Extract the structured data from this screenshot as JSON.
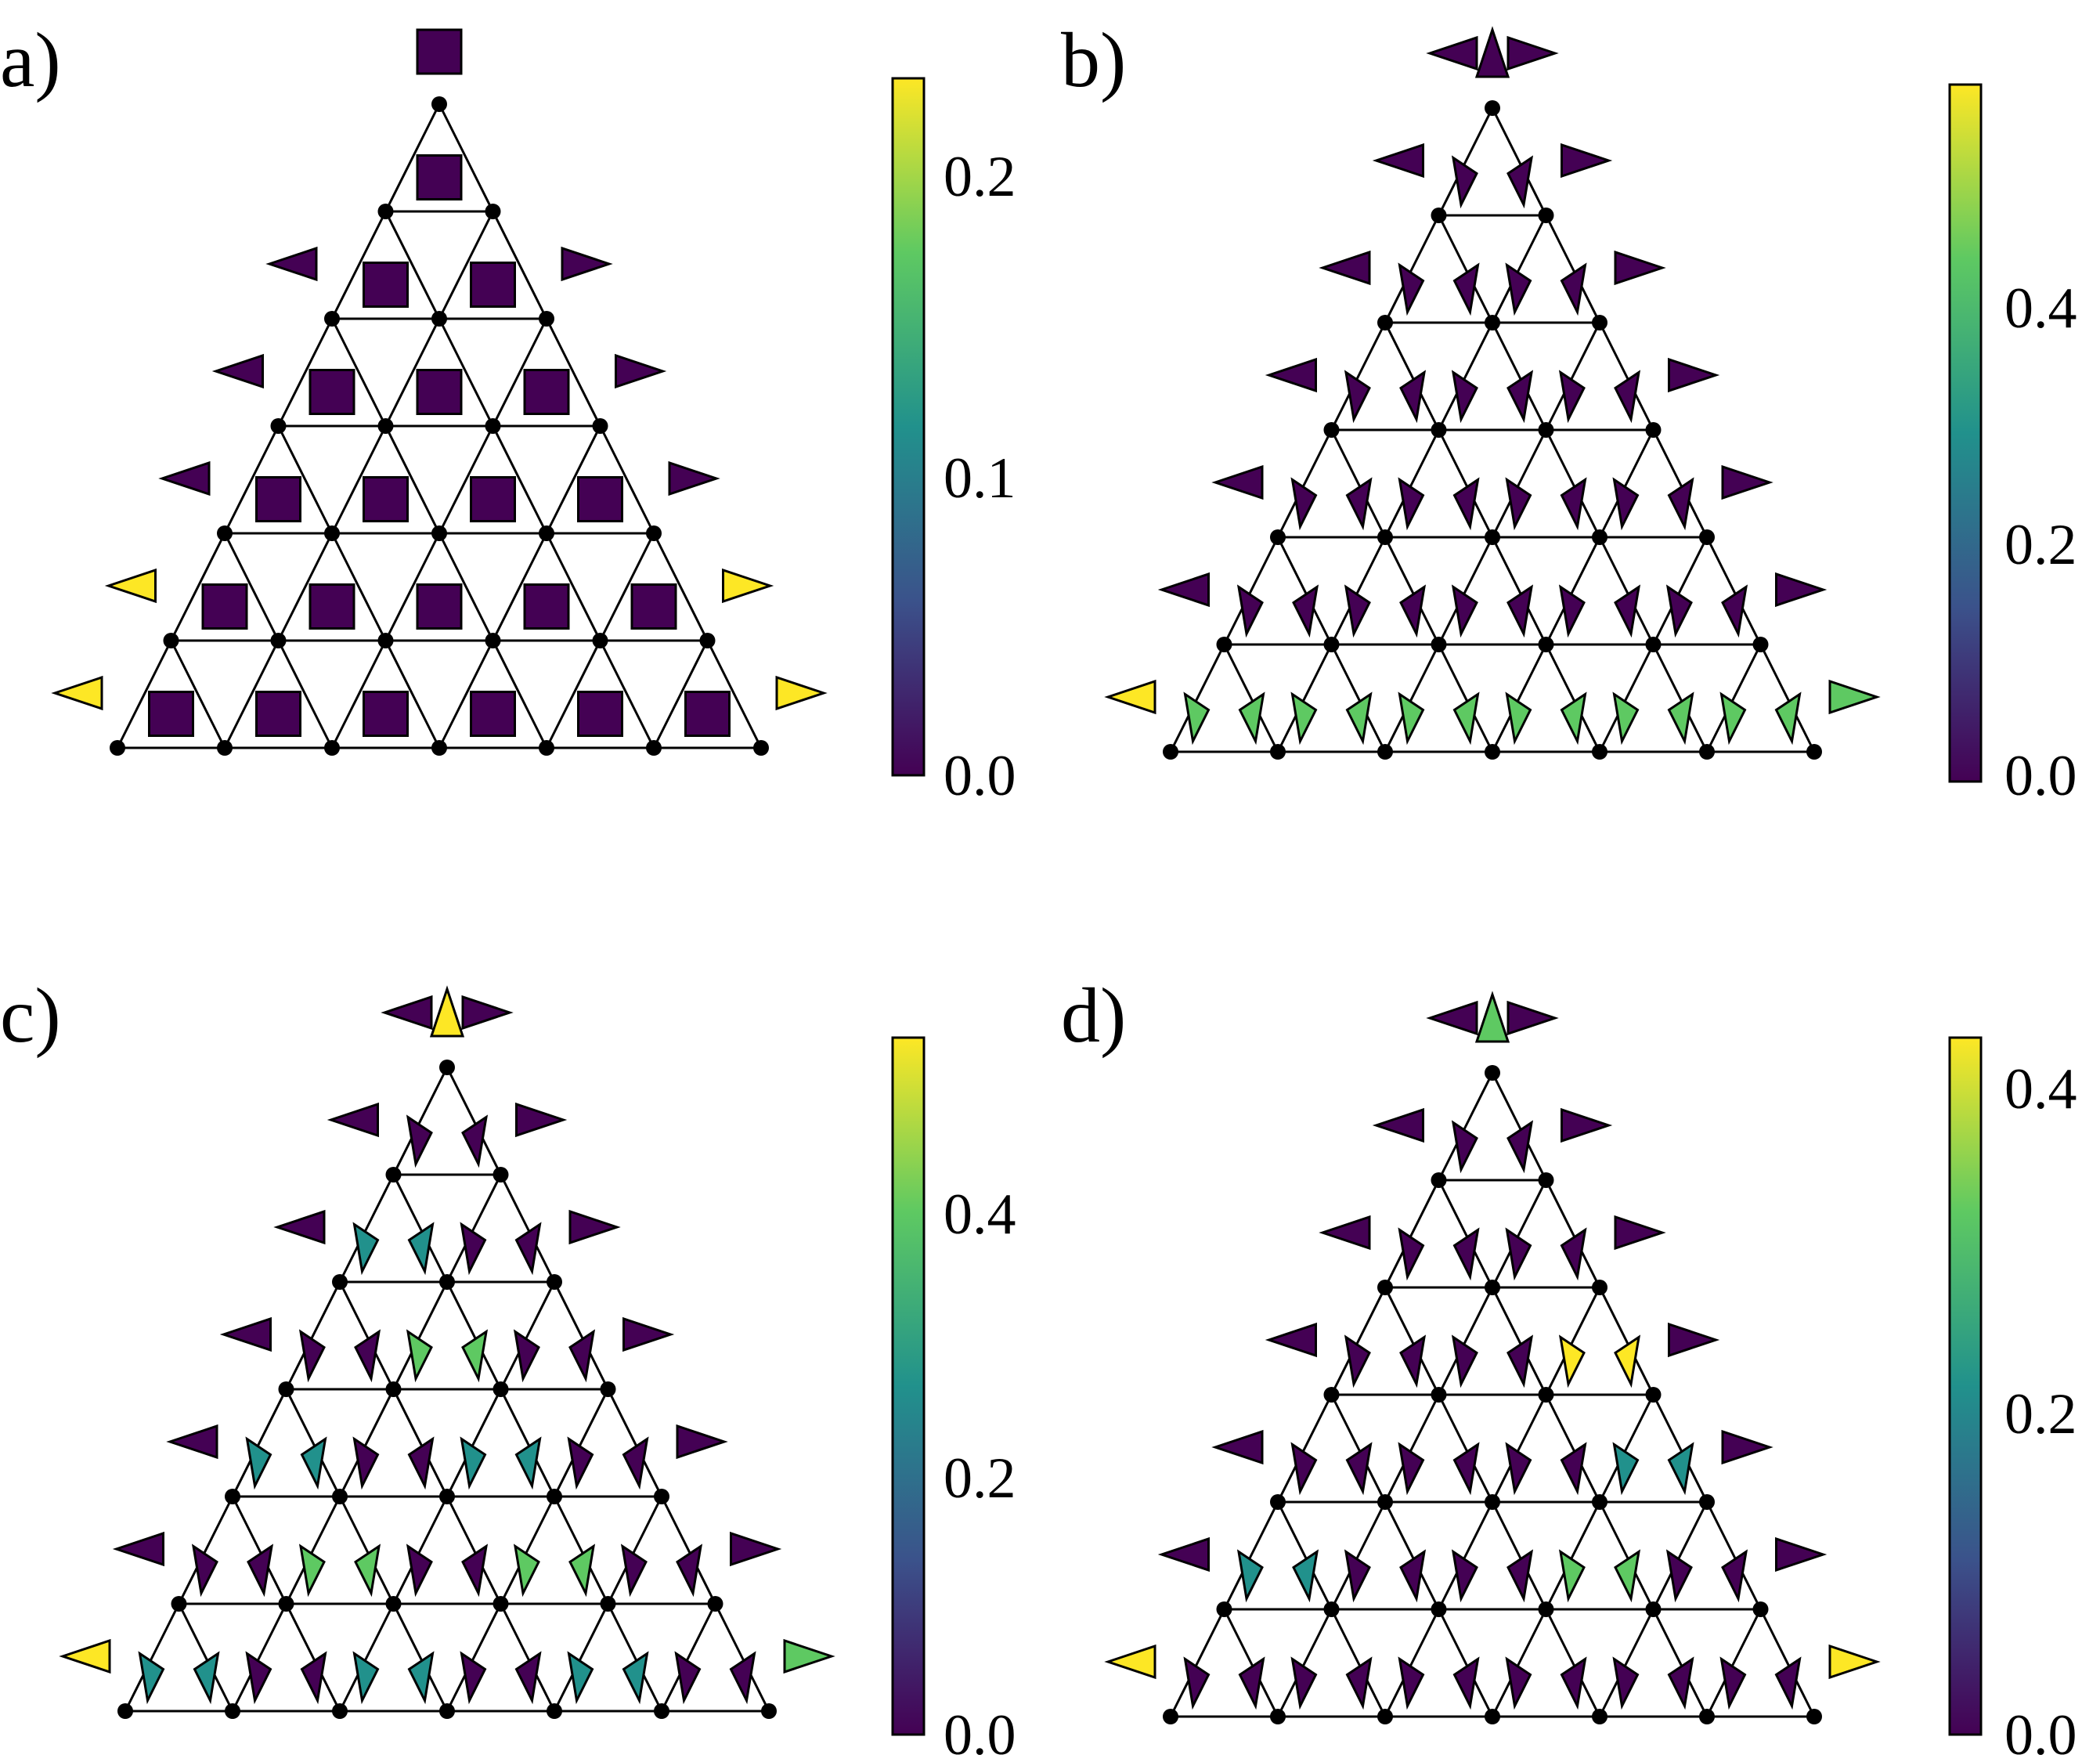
{
  "figure": {
    "panels": [
      {
        "id": "a",
        "label": "a)",
        "colorbar": {
          "ticks": [
            "0.0",
            "0.1",
            "0.2"
          ]
        }
      },
      {
        "id": "b",
        "label": "b)",
        "colorbar": {
          "ticks": [
            "0.0",
            "0.2",
            "0.4"
          ]
        }
      },
      {
        "id": "c",
        "label": "c)",
        "colorbar": {
          "ticks": [
            "0.0",
            "0.2",
            "0.4"
          ]
        }
      },
      {
        "id": "d",
        "label": "d)",
        "colorbar": {
          "ticks": [
            "0.0",
            "0.2",
            "0.4"
          ]
        }
      }
    ]
  },
  "colors": {
    "colormap": "viridis",
    "viridis_stops": [
      "#440154",
      "#3b528b",
      "#21918c",
      "#5ec962",
      "#fde725"
    ],
    "lattice": "#000000"
  },
  "marker_kinds": {
    "square": "square-marker",
    "triangle": "triangle-marker"
  }
}
